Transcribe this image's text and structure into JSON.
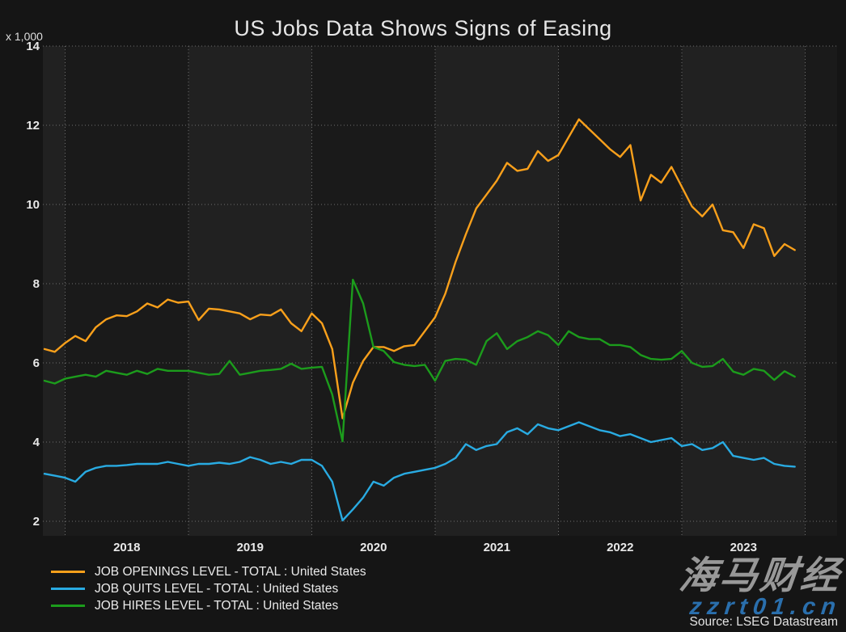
{
  "source": "Source: LSEG Datastream",
  "watermark": {
    "line1": "海马财经",
    "line2": "zzrt01.cn"
  },
  "chart_data": {
    "type": "line",
    "title": "US Jobs Data Shows Signs of Easing",
    "unit_label": "x 1,000",
    "xlabel": "",
    "ylabel": "",
    "x_start": "2017-11",
    "x_end": "2023-12",
    "frequency": "monthly",
    "x_tick_labels": [
      "2018",
      "2019",
      "2020",
      "2021",
      "2022",
      "2023"
    ],
    "y_ticks": [
      2,
      4,
      6,
      8,
      10,
      12,
      14
    ],
    "ylim": [
      1.65,
      14
    ],
    "grid": "dotted",
    "legend_position": "bottom-left",
    "background_bands": "alternating-years",
    "colors": {
      "band_dark": "#1a1a1a",
      "band_light": "#212121",
      "grid": "#6e6e6e",
      "axis_text": "#e8e8e8"
    },
    "series": [
      {
        "name": "JOB OPENINGS LEVEL - TOTAL : United States",
        "color": "#F9A01B",
        "values": [
          6.35,
          6.28,
          6.5,
          6.68,
          6.55,
          6.9,
          7.1,
          7.2,
          7.18,
          7.3,
          7.5,
          7.4,
          7.6,
          7.52,
          7.55,
          7.08,
          7.37,
          7.35,
          7.3,
          7.25,
          7.1,
          7.22,
          7.2,
          7.35,
          7.0,
          6.8,
          7.25,
          7.0,
          6.35,
          4.6,
          5.5,
          6.05,
          6.4,
          6.4,
          6.3,
          6.42,
          6.45,
          6.8,
          7.15,
          7.75,
          8.55,
          9.25,
          9.9,
          10.25,
          10.6,
          11.05,
          10.85,
          10.9,
          11.35,
          11.1,
          11.25,
          11.7,
          12.15,
          11.9,
          11.65,
          11.4,
          11.2,
          11.5,
          10.1,
          10.75,
          10.55,
          10.95,
          10.45,
          9.95,
          9.7,
          10.0,
          9.35,
          9.3,
          8.9,
          9.5,
          9.4,
          8.7,
          9.0,
          8.85
        ]
      },
      {
        "name": "JOB QUITS LEVEL - TOTAL : United States",
        "color": "#29ABE2",
        "values": [
          3.2,
          3.15,
          3.1,
          3.0,
          3.25,
          3.35,
          3.4,
          3.4,
          3.42,
          3.45,
          3.45,
          3.45,
          3.5,
          3.45,
          3.4,
          3.45,
          3.45,
          3.48,
          3.45,
          3.5,
          3.62,
          3.55,
          3.45,
          3.5,
          3.45,
          3.55,
          3.55,
          3.4,
          3.0,
          2.02,
          2.3,
          2.6,
          3.0,
          2.9,
          3.1,
          3.2,
          3.25,
          3.3,
          3.35,
          3.45,
          3.6,
          3.95,
          3.8,
          3.9,
          3.95,
          4.25,
          4.35,
          4.2,
          4.45,
          4.35,
          4.3,
          4.4,
          4.5,
          4.4,
          4.3,
          4.25,
          4.15,
          4.2,
          4.1,
          4.0,
          4.05,
          4.1,
          3.9,
          3.95,
          3.8,
          3.85,
          4.0,
          3.65,
          3.6,
          3.55,
          3.6,
          3.45,
          3.4,
          3.38
        ]
      },
      {
        "name": "JOB HIRES LEVEL - TOTAL : United States",
        "color": "#1C9C1C",
        "values": [
          5.55,
          5.48,
          5.6,
          5.65,
          5.7,
          5.65,
          5.8,
          5.75,
          5.7,
          5.8,
          5.72,
          5.85,
          5.8,
          5.8,
          5.8,
          5.75,
          5.7,
          5.72,
          6.05,
          5.7,
          5.75,
          5.8,
          5.82,
          5.85,
          5.98,
          5.85,
          5.88,
          5.9,
          5.2,
          4.02,
          8.1,
          7.5,
          6.4,
          6.3,
          6.02,
          5.95,
          5.92,
          5.95,
          5.55,
          6.05,
          6.1,
          6.08,
          5.95,
          6.55,
          6.75,
          6.35,
          6.55,
          6.65,
          6.8,
          6.7,
          6.45,
          6.8,
          6.65,
          6.6,
          6.6,
          6.45,
          6.45,
          6.4,
          6.2,
          6.1,
          6.08,
          6.1,
          6.3,
          6.0,
          5.9,
          5.92,
          6.1,
          5.78,
          5.7,
          5.85,
          5.8,
          5.57,
          5.79,
          5.65
        ]
      }
    ]
  }
}
